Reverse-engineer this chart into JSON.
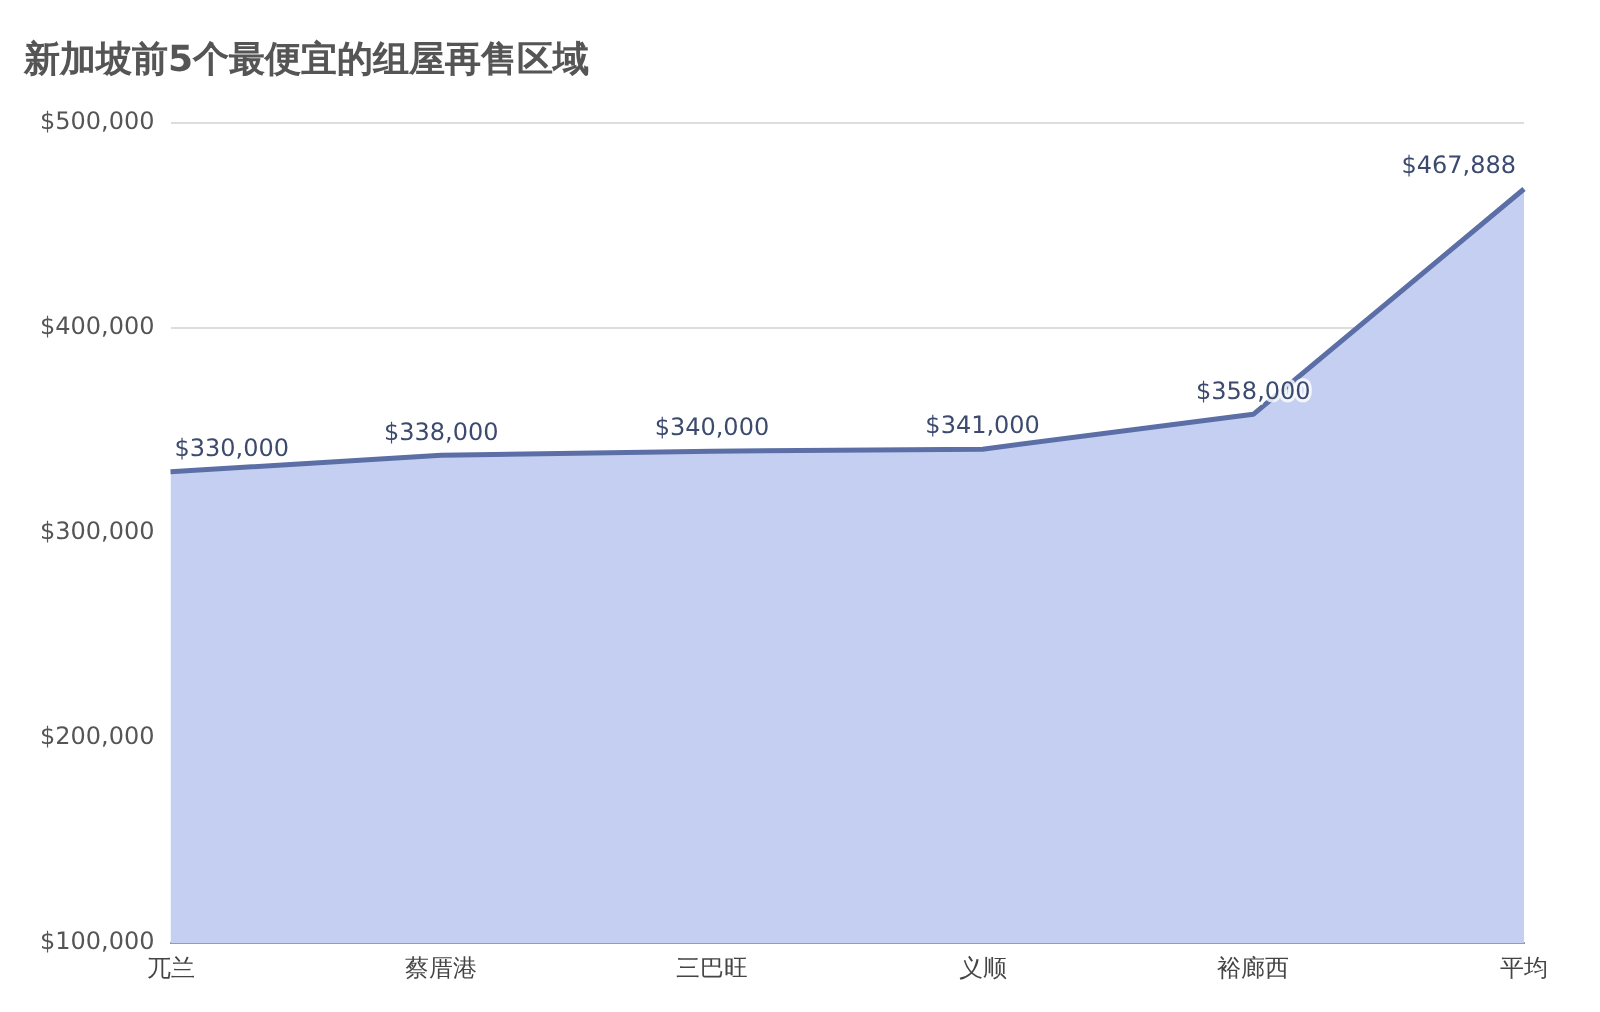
{
  "chart_data": {
    "type": "area",
    "title": "新加坡前5个最便宜的组屋再售区域",
    "categories": [
      "兀兰",
      "蔡厝港",
      "三巴旺",
      "义顺",
      "裕廊西",
      "平均"
    ],
    "series": [
      {
        "color": "#5b6fa6",
        "values": [
          330000,
          338000,
          340000,
          341000,
          358000,
          467888
        ],
        "value_labels": [
          "$330,000",
          "$338,000",
          "$340,000",
          "$341,000",
          "$358,000",
          "$467,888"
        ]
      }
    ],
    "ylim": [
      100000,
      500000
    ],
    "yticks": [
      {
        "value": 100000,
        "label": "$100,000"
      },
      {
        "value": 200000,
        "label": "$200,000"
      },
      {
        "value": 300000,
        "label": "$300,000"
      },
      {
        "value": 400000,
        "label": "$400,000"
      },
      {
        "value": 500000,
        "label": "$500,000"
      }
    ],
    "grid": "y",
    "legend": false,
    "marker": "none"
  }
}
